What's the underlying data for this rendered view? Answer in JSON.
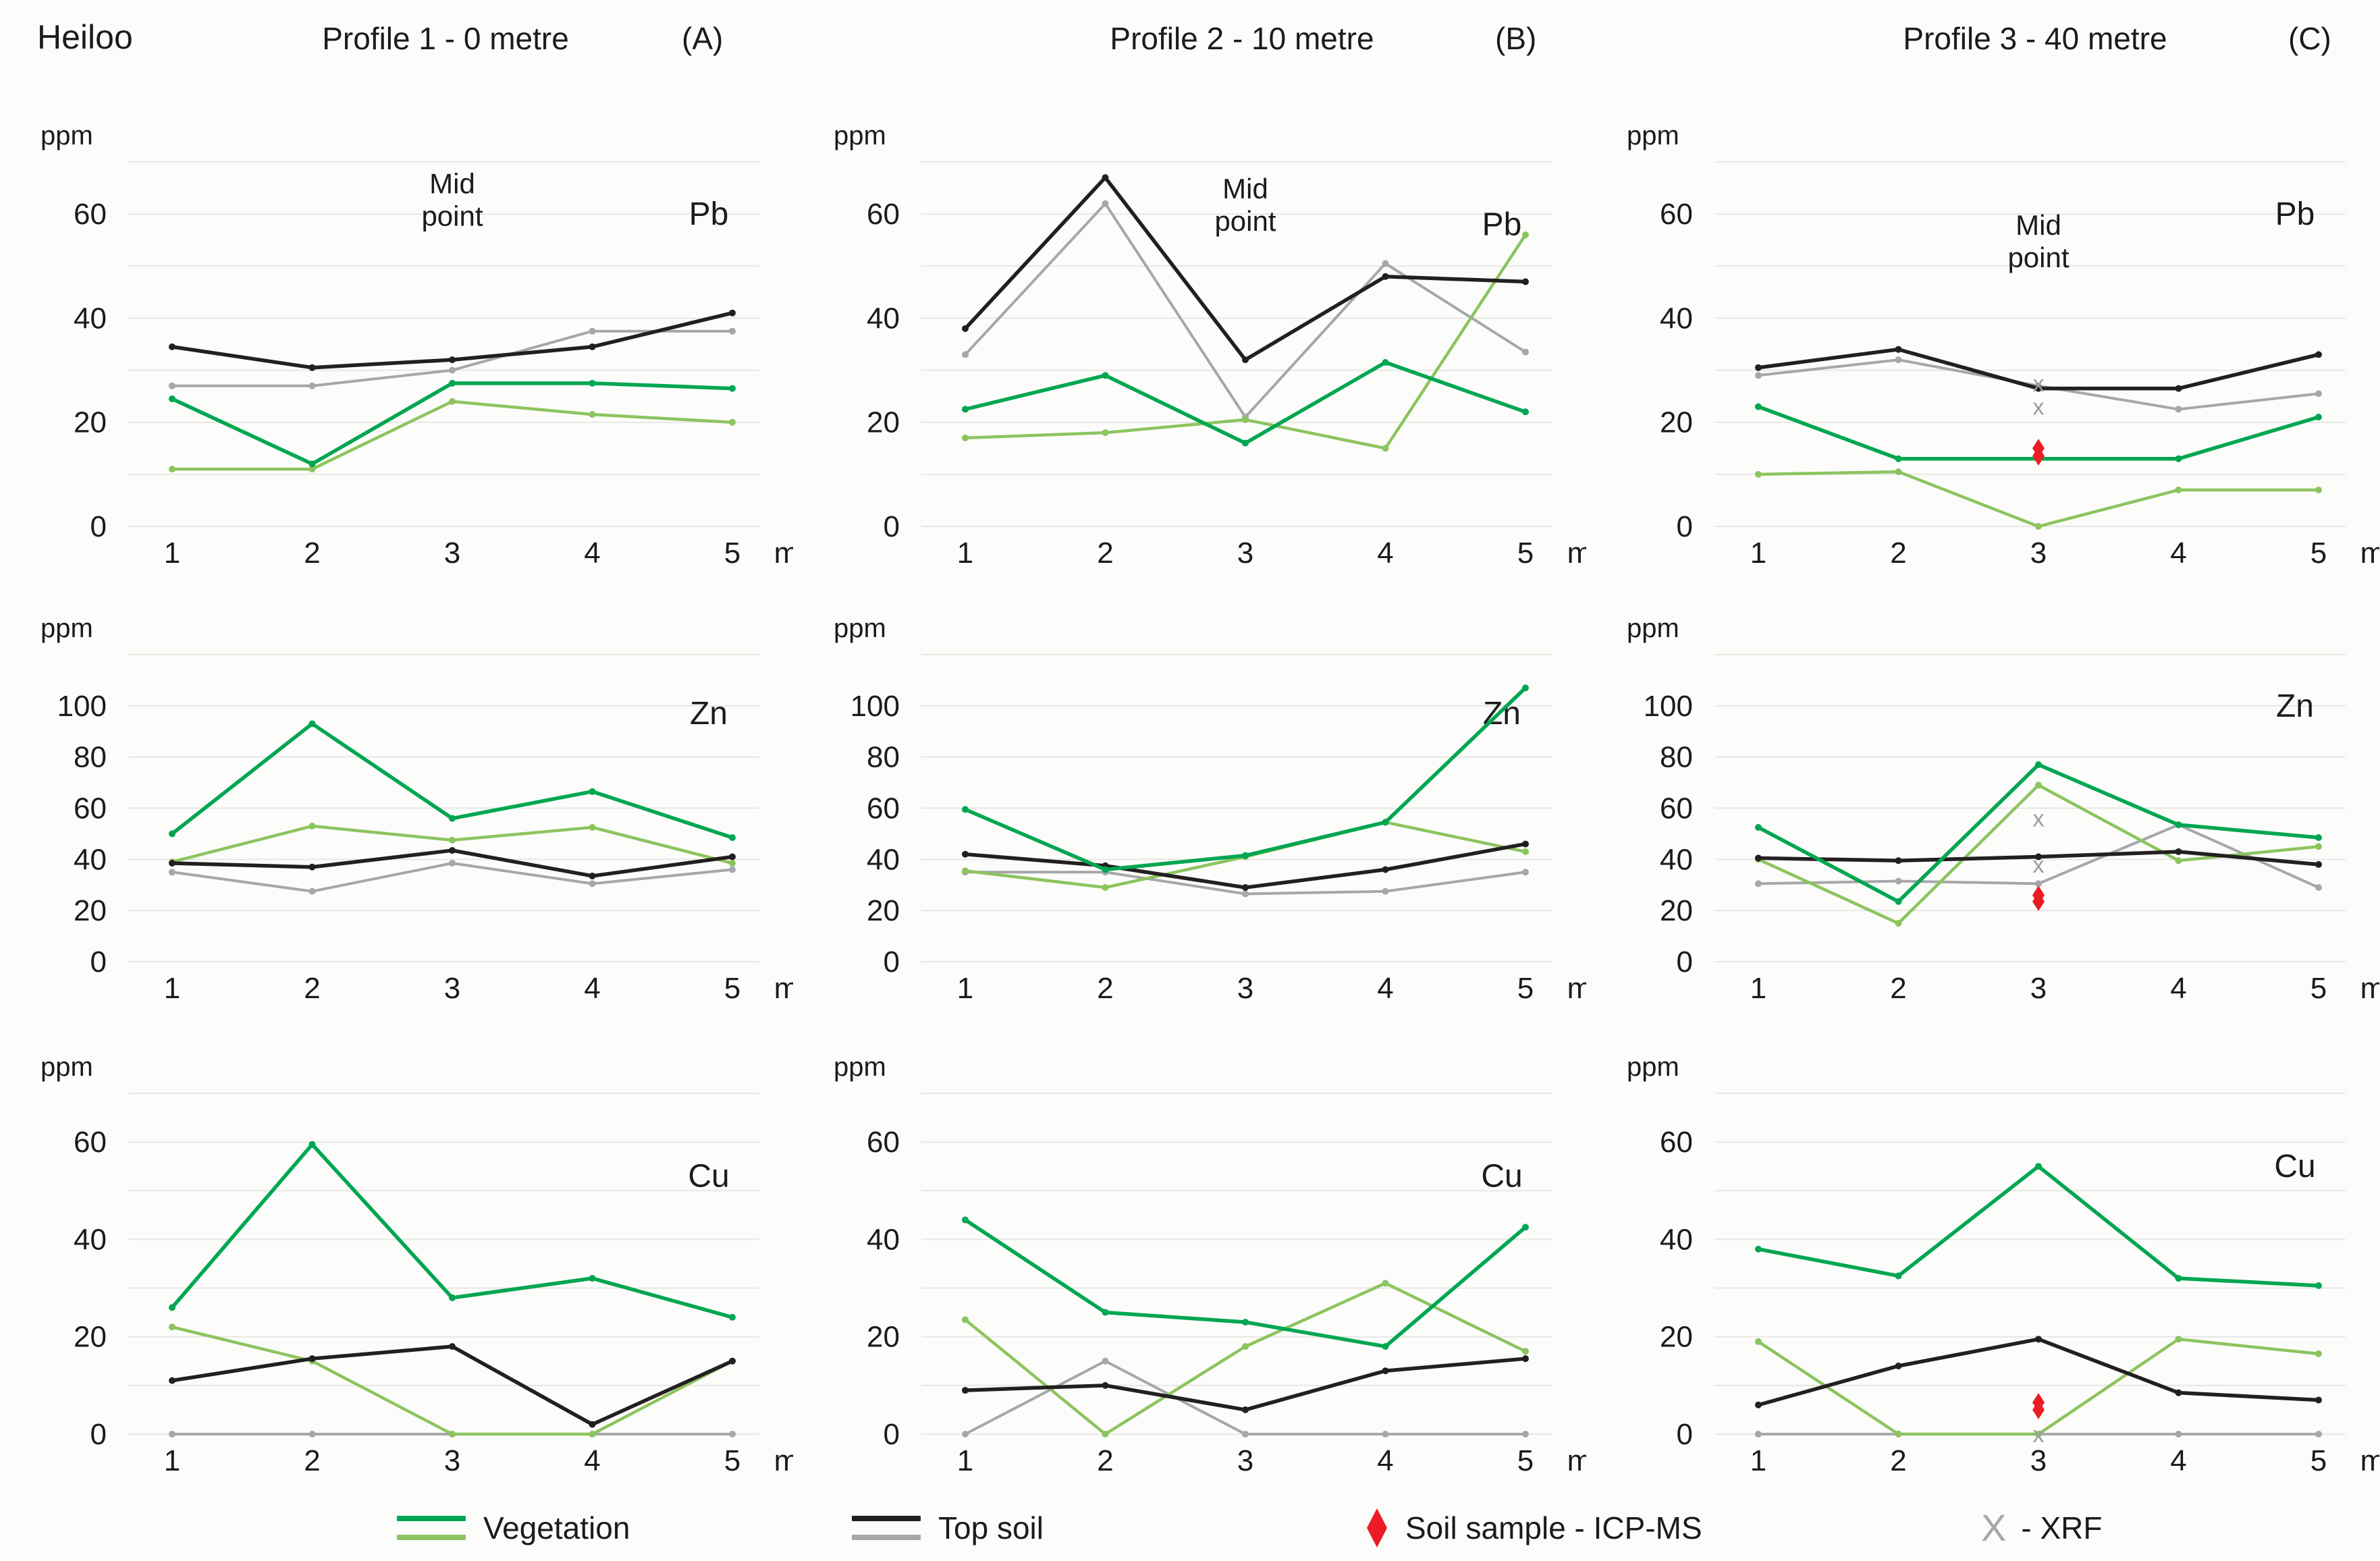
{
  "header": {
    "title": "Heiloo",
    "columns": [
      {
        "label": "Profile 1 - 0 metre",
        "tag": "(A)"
      },
      {
        "label": "Profile 2 - 10 metre",
        "tag": "(B)"
      },
      {
        "label": "Profile 3 - 40 metre",
        "tag": "(C)"
      }
    ]
  },
  "colors": {
    "vegetation_dark": "#00a651",
    "vegetation_light": "#8cc45e",
    "topsoil_dark": "#231f20",
    "topsoil_light": "#a5a7aa",
    "icpms_red": "#ec1c24",
    "xrf_gray": "#9b9da0",
    "gridline": "#e7e7e4",
    "text": "#1b1b1b"
  },
  "legend": {
    "items": [
      {
        "label": "Vegetation",
        "type": "lines",
        "colors": [
          "#00a651",
          "#8cc45e"
        ]
      },
      {
        "label": "Top soil",
        "type": "lines",
        "colors": [
          "#231f20",
          "#a5a7aa"
        ]
      },
      {
        "label": "Soil sample - ICP-MS",
        "type": "diamond",
        "color": "#ec1c24"
      },
      {
        "label": "- XRF",
        "type": "x",
        "symbol": "X",
        "color": "#a5a7aa"
      }
    ]
  },
  "chart_data": [
    {
      "type": "line",
      "element": "Pb",
      "profile": "Profile 1 - 0 metre",
      "unit": "ppm",
      "xticks": [
        "1",
        "2",
        "3",
        "4",
        "5"
      ],
      "xunit": "m",
      "yticks": [
        0,
        20,
        40,
        60
      ],
      "ymax": 70,
      "gridstep": 10,
      "label_y": 60,
      "midpoint": {
        "label": [
          "Mid",
          "point"
        ],
        "x": 3,
        "y": 64
      },
      "series": [
        {
          "name": "topsoil-light",
          "color": "#a5a7aa",
          "values": [
            27,
            27,
            30,
            37.5,
            37.5
          ]
        },
        {
          "name": "vegetation-light",
          "color": "#8cc45e",
          "values": [
            11,
            11,
            24,
            21.5,
            20
          ]
        },
        {
          "name": "topsoil-dark",
          "color": "#231f20",
          "values": [
            34.5,
            30.5,
            32,
            34.5,
            41
          ]
        },
        {
          "name": "vegetation-dark",
          "color": "#00a651",
          "values": [
            24.5,
            12,
            27.5,
            27.5,
            26.5
          ]
        }
      ],
      "xrf": [],
      "icpms": []
    },
    {
      "type": "line",
      "element": "Pb",
      "profile": "Profile 2 - 10 metre",
      "unit": "ppm",
      "xticks": [
        "1",
        "2",
        "3",
        "4",
        "5"
      ],
      "xunit": "m",
      "yticks": [
        0,
        20,
        40,
        60
      ],
      "ymax": 70,
      "gridstep": 10,
      "label_y": 58,
      "midpoint": {
        "label": [
          "Mid",
          "point"
        ],
        "x": 3,
        "y": 63
      },
      "series": [
        {
          "name": "topsoil-light",
          "color": "#a5a7aa",
          "values": [
            33,
            62,
            21,
            50.5,
            33.5
          ]
        },
        {
          "name": "vegetation-light",
          "color": "#8cc45e",
          "values": [
            17,
            18,
            20.5,
            15,
            56
          ]
        },
        {
          "name": "topsoil-dark",
          "color": "#231f20",
          "values": [
            38,
            67,
            32,
            48,
            47
          ]
        },
        {
          "name": "vegetation-dark",
          "color": "#00a651",
          "values": [
            22.5,
            29,
            16,
            31.5,
            22
          ]
        }
      ],
      "xrf": [],
      "icpms": []
    },
    {
      "type": "line",
      "element": "Pb",
      "profile": "Profile 3 - 40 metre",
      "unit": "ppm",
      "xticks": [
        "1",
        "2",
        "3",
        "4",
        "5"
      ],
      "xunit": "m",
      "yticks": [
        0,
        20,
        40,
        60
      ],
      "ymax": 70,
      "gridstep": 10,
      "label_y": 60,
      "midpoint": {
        "label": [
          "Mid",
          "point"
        ],
        "x": 3,
        "y": 56
      },
      "series": [
        {
          "name": "topsoil-light",
          "color": "#a5a7aa",
          "values": [
            29,
            32,
            27,
            22.5,
            25.5
          ]
        },
        {
          "name": "vegetation-light",
          "color": "#8cc45e",
          "values": [
            10,
            10.5,
            0,
            7,
            7
          ]
        },
        {
          "name": "topsoil-dark",
          "color": "#231f20",
          "values": [
            30.5,
            34,
            26.5,
            26.5,
            33
          ]
        },
        {
          "name": "vegetation-dark",
          "color": "#00a651",
          "values": [
            23,
            13,
            13,
            13,
            21
          ]
        }
      ],
      "xrf": [
        {
          "x": 3,
          "y": 27.5
        },
        {
          "x": 3,
          "y": 23
        }
      ],
      "icpms": [
        {
          "x": 3,
          "y": 15
        },
        {
          "x": 3,
          "y": 13.5
        }
      ]
    },
    {
      "type": "line",
      "element": "Zn",
      "profile": "Profile 1 - 0 metre",
      "unit": "ppm",
      "xticks": [
        "1",
        "2",
        "3",
        "4",
        "5"
      ],
      "xunit": "m",
      "yticks": [
        0,
        20,
        40,
        60,
        80,
        100
      ],
      "ymax": 120,
      "gridstep": 20,
      "label_y": 97,
      "midpoint": null,
      "series": [
        {
          "name": "topsoil-light",
          "color": "#a5a7aa",
          "values": [
            35,
            27.5,
            38.5,
            30.5,
            36
          ]
        },
        {
          "name": "vegetation-light",
          "color": "#8cc45e",
          "values": [
            39,
            53,
            47.5,
            52.5,
            38.5
          ]
        },
        {
          "name": "topsoil-dark",
          "color": "#231f20",
          "values": [
            38.5,
            37,
            43.5,
            33.5,
            41
          ]
        },
        {
          "name": "vegetation-dark",
          "color": "#00a651",
          "values": [
            50,
            93,
            56,
            66.5,
            48.5
          ]
        }
      ],
      "xrf": [],
      "icpms": []
    },
    {
      "type": "line",
      "element": "Zn",
      "profile": "Profile 2 - 10 metre",
      "unit": "ppm",
      "xticks": [
        "1",
        "2",
        "3",
        "4",
        "5"
      ],
      "xunit": "m",
      "yticks": [
        0,
        20,
        40,
        60,
        80,
        100
      ],
      "ymax": 120,
      "gridstep": 20,
      "label_y": 97,
      "midpoint": null,
      "series": [
        {
          "name": "topsoil-light",
          "color": "#a5a7aa",
          "values": [
            35,
            35,
            26.5,
            27.5,
            35
          ]
        },
        {
          "name": "vegetation-light",
          "color": "#8cc45e",
          "values": [
            35.5,
            29,
            41,
            54.5,
            43
          ]
        },
        {
          "name": "topsoil-dark",
          "color": "#231f20",
          "values": [
            42,
            37.5,
            29,
            36,
            46
          ]
        },
        {
          "name": "vegetation-dark",
          "color": "#00a651",
          "values": [
            59.5,
            36,
            41.5,
            54.5,
            107
          ]
        }
      ],
      "xrf": [],
      "icpms": []
    },
    {
      "type": "line",
      "element": "Zn",
      "profile": "Profile 3 - 40 metre",
      "unit": "ppm",
      "xticks": [
        "1",
        "2",
        "3",
        "4",
        "5"
      ],
      "xunit": "m",
      "yticks": [
        0,
        20,
        40,
        60,
        80,
        100
      ],
      "ymax": 120,
      "gridstep": 20,
      "label_y": 100,
      "midpoint": null,
      "series": [
        {
          "name": "topsoil-light",
          "color": "#a5a7aa",
          "values": [
            30.5,
            31.5,
            30.5,
            53.5,
            29
          ]
        },
        {
          "name": "vegetation-light",
          "color": "#8cc45e",
          "values": [
            40,
            15,
            69,
            39.5,
            45
          ]
        },
        {
          "name": "topsoil-dark",
          "color": "#231f20",
          "values": [
            40.5,
            39.5,
            41,
            43,
            38
          ]
        },
        {
          "name": "vegetation-dark",
          "color": "#00a651",
          "values": [
            52.5,
            23.5,
            77,
            53.5,
            48.5
          ]
        }
      ],
      "xrf": [
        {
          "x": 3,
          "y": 56
        },
        {
          "x": 3,
          "y": 38
        }
      ],
      "icpms": [
        {
          "x": 3,
          "y": 26
        },
        {
          "x": 3,
          "y": 23.5
        }
      ]
    },
    {
      "type": "line",
      "element": "Cu",
      "profile": "Profile 1 - 0 metre",
      "unit": "ppm",
      "xticks": [
        "1",
        "2",
        "3",
        "4",
        "5"
      ],
      "xunit": "m",
      "yticks": [
        0,
        20,
        40,
        60
      ],
      "ymax": 70,
      "gridstep": 10,
      "label_y": 53,
      "midpoint": null,
      "series": [
        {
          "name": "topsoil-light",
          "color": "#a5a7aa",
          "values": [
            0,
            0,
            0,
            0,
            0
          ]
        },
        {
          "name": "vegetation-light",
          "color": "#8cc45e",
          "values": [
            22,
            15,
            0,
            0,
            15
          ]
        },
        {
          "name": "topsoil-dark",
          "color": "#231f20",
          "values": [
            11,
            15.5,
            18,
            2,
            15
          ]
        },
        {
          "name": "vegetation-dark",
          "color": "#00a651",
          "values": [
            26,
            59.5,
            28,
            32,
            24
          ]
        }
      ],
      "xrf": [],
      "icpms": []
    },
    {
      "type": "line",
      "element": "Cu",
      "profile": "Profile 2 - 10 metre",
      "unit": "ppm",
      "xticks": [
        "1",
        "2",
        "3",
        "4",
        "5"
      ],
      "xunit": "m",
      "yticks": [
        0,
        20,
        40,
        60
      ],
      "ymax": 70,
      "gridstep": 10,
      "label_y": 53,
      "midpoint": null,
      "series": [
        {
          "name": "topsoil-light",
          "color": "#a5a7aa",
          "values": [
            0,
            15,
            0,
            0,
            0
          ]
        },
        {
          "name": "vegetation-light",
          "color": "#8cc45e",
          "values": [
            23.5,
            0,
            18,
            31,
            17
          ]
        },
        {
          "name": "topsoil-dark",
          "color": "#231f20",
          "values": [
            9,
            10,
            5,
            13,
            15.5
          ]
        },
        {
          "name": "vegetation-dark",
          "color": "#00a651",
          "values": [
            44,
            25,
            23,
            18,
            42.5
          ]
        }
      ],
      "xrf": [],
      "icpms": []
    },
    {
      "type": "line",
      "element": "Cu",
      "profile": "Profile 3 - 40 metre",
      "unit": "ppm",
      "xticks": [
        "1",
        "2",
        "3",
        "4",
        "5"
      ],
      "xunit": "m",
      "yticks": [
        0,
        20,
        40,
        60
      ],
      "ymax": 70,
      "gridstep": 10,
      "label_y": 55,
      "midpoint": null,
      "series": [
        {
          "name": "topsoil-light",
          "color": "#a5a7aa",
          "values": [
            0,
            0,
            0,
            0,
            0
          ]
        },
        {
          "name": "vegetation-light",
          "color": "#8cc45e",
          "values": [
            19,
            0,
            0,
            19.5,
            16.5
          ]
        },
        {
          "name": "topsoil-dark",
          "color": "#231f20",
          "values": [
            6,
            14,
            19.5,
            8.5,
            7
          ]
        },
        {
          "name": "vegetation-dark",
          "color": "#00a651",
          "values": [
            38,
            32.5,
            55,
            32,
            30.5
          ]
        }
      ],
      "xrf": [
        {
          "x": 3,
          "y": 0
        }
      ],
      "icpms": [
        {
          "x": 3,
          "y": 6.5
        },
        {
          "x": 3,
          "y": 5
        }
      ]
    }
  ]
}
